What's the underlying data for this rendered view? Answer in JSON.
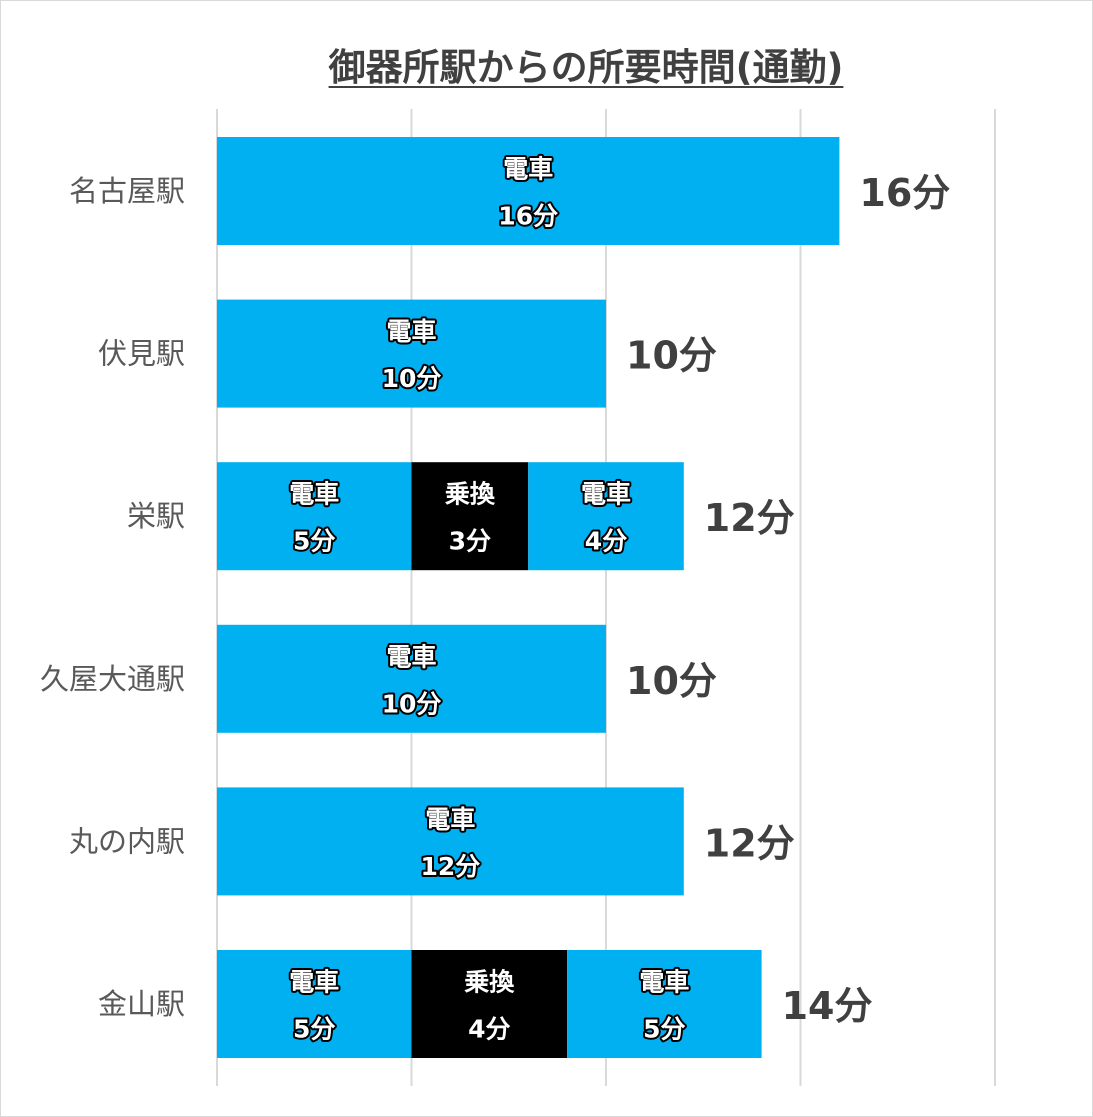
{
  "chart_data": {
    "type": "bar",
    "orientation": "horizontal",
    "stacked": true,
    "title": "御器所駅からの所要時間(通勤)",
    "categories": [
      "名古屋駅",
      "伏見駅",
      "栄駅",
      "久屋大通駅",
      "丸の内駅",
      "金山駅"
    ],
    "bars": [
      {
        "category": "名古屋駅",
        "total_label": "16分",
        "segments": [
          {
            "mode": "電車",
            "minutes": 16,
            "value_label": "16分",
            "color": "#00b0f0"
          }
        ]
      },
      {
        "category": "伏見駅",
        "total_label": "10分",
        "segments": [
          {
            "mode": "電車",
            "minutes": 10,
            "value_label": "10分",
            "color": "#00b0f0"
          }
        ]
      },
      {
        "category": "栄駅",
        "total_label": "12分",
        "segments": [
          {
            "mode": "電車",
            "minutes": 5,
            "value_label": "5分",
            "color": "#00b0f0"
          },
          {
            "mode": "乗換",
            "minutes": 3,
            "value_label": "3分",
            "color": "#000000"
          },
          {
            "mode": "電車",
            "minutes": 4,
            "value_label": "4分",
            "color": "#00b0f0"
          }
        ]
      },
      {
        "category": "久屋大通駅",
        "total_label": "10分",
        "segments": [
          {
            "mode": "電車",
            "minutes": 10,
            "value_label": "10分",
            "color": "#00b0f0"
          }
        ]
      },
      {
        "category": "丸の内駅",
        "total_label": "12分",
        "segments": [
          {
            "mode": "電車",
            "minutes": 12,
            "value_label": "12分",
            "color": "#00b0f0"
          }
        ]
      },
      {
        "category": "金山駅",
        "total_label": "14分",
        "segments": [
          {
            "mode": "電車",
            "minutes": 5,
            "value_label": "5分",
            "color": "#00b0f0"
          },
          {
            "mode": "乗換",
            "minutes": 4,
            "value_label": "4分",
            "color": "#000000"
          },
          {
            "mode": "電車",
            "minutes": 5,
            "value_label": "5分",
            "color": "#00b0f0"
          }
        ]
      }
    ],
    "xlim": [
      0,
      20
    ],
    "grid": true,
    "gridline_values": [
      0,
      5,
      10,
      15,
      20
    ],
    "legend": "none",
    "colors": {
      "train": "#00b0f0",
      "transfer": "#000000",
      "gridline": "#d9d9d9"
    }
  }
}
